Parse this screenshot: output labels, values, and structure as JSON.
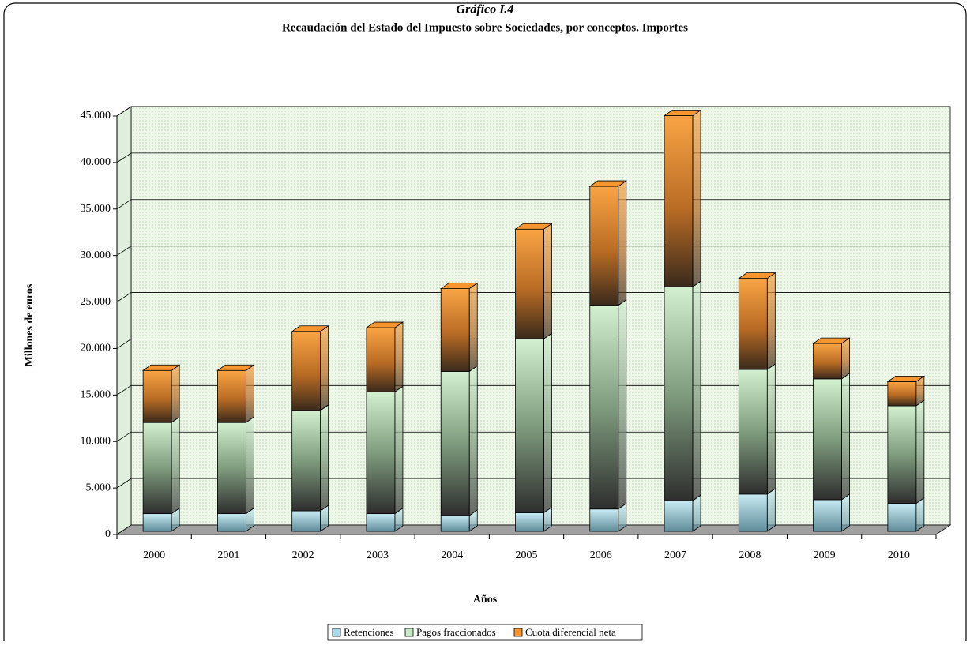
{
  "chart_data": {
    "type": "bar",
    "stacked": true,
    "title": "Gráfico I.4",
    "subtitle": "Recaudación del Estado del Impuesto sobre Sociedades, por conceptos.  Importes",
    "x_label": "Años",
    "y_label": "Millones de euros",
    "categories": [
      "2000",
      "2001",
      "2002",
      "2003",
      "2004",
      "2005",
      "2006",
      "2007",
      "2008",
      "2009",
      "2010"
    ],
    "series": [
      {
        "name": "Retenciones",
        "color": "#a9d8e6",
        "values": [
          1900,
          1900,
          2200,
          1900,
          1700,
          2000,
          2400,
          3300,
          4000,
          3400,
          3000
        ]
      },
      {
        "name": "Pagos fraccionados",
        "color": "#c6e8c4",
        "values": [
          9800,
          9800,
          10800,
          13100,
          15500,
          18700,
          21900,
          23000,
          13400,
          13000,
          10500
        ]
      },
      {
        "name": "Cuota diferencial neta",
        "color": "#f7962f",
        "values": [
          5600,
          5600,
          8500,
          6900,
          8900,
          11800,
          12800,
          18400,
          9800,
          3800,
          2600
        ]
      }
    ],
    "ylim": [
      0,
      45000
    ],
    "yticks": [
      0,
      {
        "value": 5000,
        "label": "5.000"
      },
      {
        "value": 10000,
        "label": "10.000"
      },
      {
        "value": 15000,
        "label": "15.000"
      },
      {
        "value": 20000,
        "label": "20.000"
      },
      {
        "value": 25000,
        "label": "25.000"
      },
      {
        "value": 30000,
        "label": "30.000"
      },
      {
        "value": 35000,
        "label": "35.000"
      },
      {
        "value": 40000,
        "label": "40.000"
      },
      {
        "value": 45000,
        "label": "45.000"
      }
    ],
    "grid": true,
    "legend": "bottom"
  }
}
